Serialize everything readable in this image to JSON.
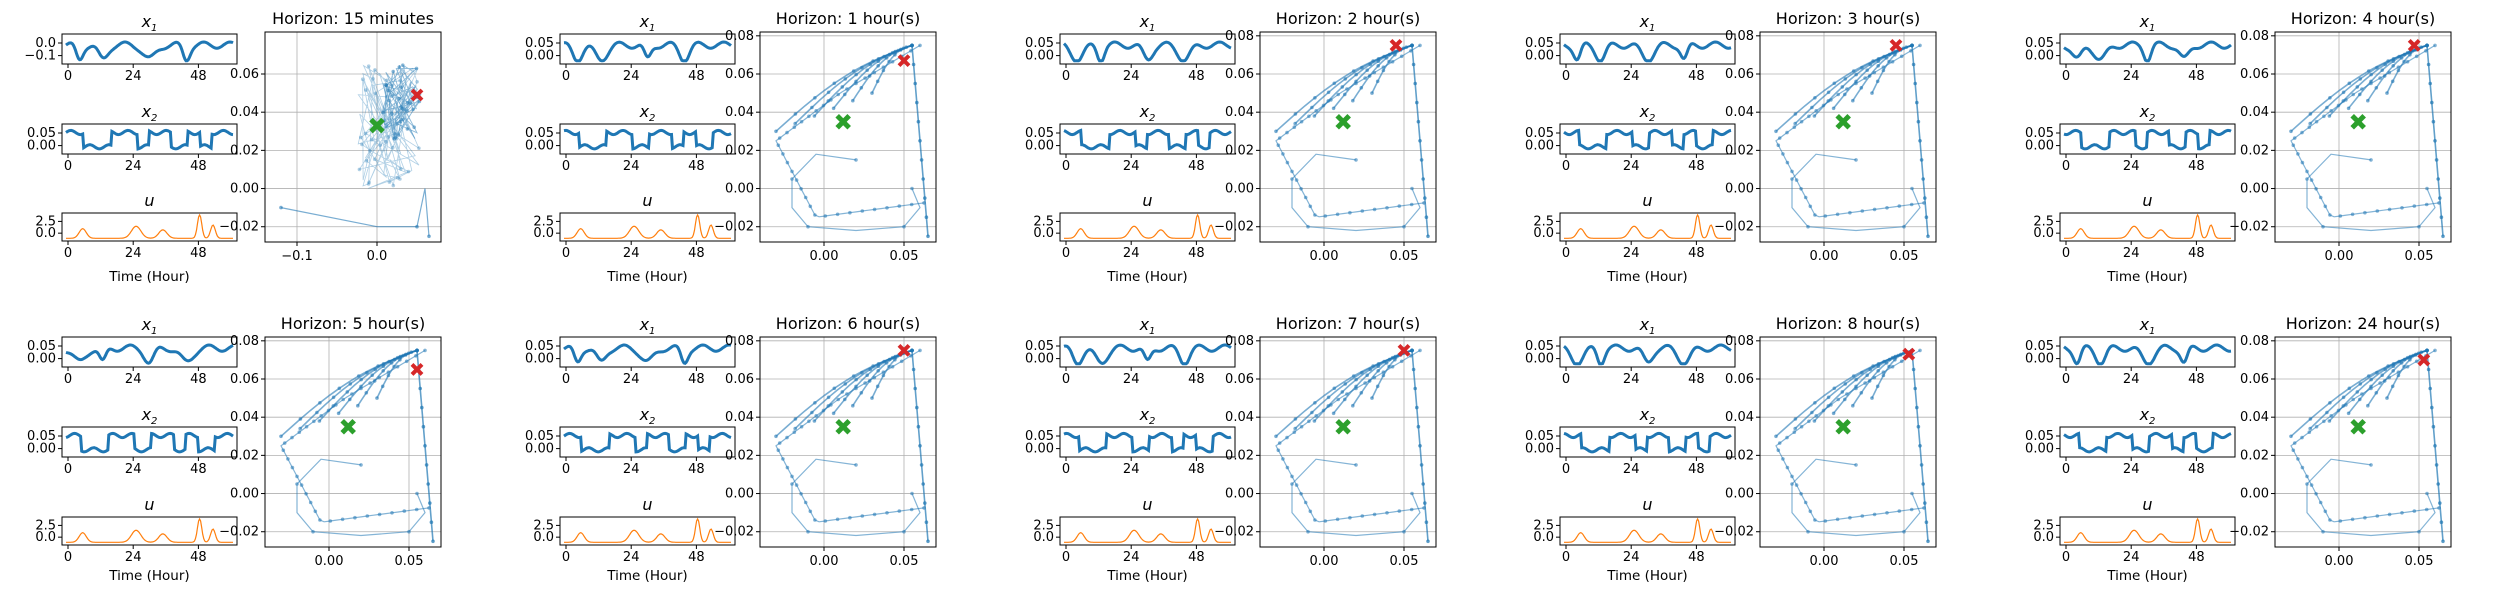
{
  "chart_data": {
    "type": "line",
    "colors": {
      "state": "#1f77b4",
      "input": "#ff7f0e",
      "start": "#2ca02c",
      "end": "#d62728",
      "grid": "#b0b0b0"
    },
    "time_series_panel": {
      "x_ticks": [
        "0",
        "24",
        "48"
      ],
      "xlabel": "Time (Hour)",
      "row_titles": [
        "x1",
        "x2",
        "u"
      ],
      "x1_ticks_first": [
        "0.0",
        "−0.1"
      ],
      "x1_ticks": [
        "0.05",
        "0.00"
      ],
      "x2_ticks": [
        "0.05",
        "0.00"
      ],
      "u_ticks": [
        "2.5",
        "0.0"
      ],
      "x_range": [
        0,
        60
      ]
    },
    "phase_portraits": [
      {
        "title": "Horizon: 15 minutes",
        "x_ticks": [
          "−0.1",
          "0.0",
          "0.1"
        ],
        "y_ticks": [
          "0.06",
          "0.04",
          "0.02",
          "0.00",
          "−0.02"
        ],
        "start": [
          0.0,
          0.033
        ],
        "end": [
          0.05,
          0.049
        ]
      },
      {
        "title": "Horizon: 1 hour(s)",
        "x_ticks": [
          "0.00",
          "0.05"
        ],
        "y_ticks": [
          "0.08",
          "0.06",
          "0.04",
          "0.02",
          "0.00",
          "−0.02"
        ],
        "start": [
          0.012,
          0.035
        ],
        "end": [
          0.05,
          0.067
        ]
      },
      {
        "title": "Horizon: 2 hour(s)",
        "x_ticks": [
          "0.00",
          "0.05"
        ],
        "y_ticks": [
          "0.08",
          "0.06",
          "0.04",
          "0.02",
          "0.00",
          "−0.02"
        ],
        "start": [
          0.012,
          0.035
        ],
        "end": [
          0.045,
          0.075
        ]
      },
      {
        "title": "Horizon: 3 hour(s)",
        "x_ticks": [
          "0.00",
          "0.05"
        ],
        "y_ticks": [
          "0.08",
          "0.06",
          "0.04",
          "0.02",
          "0.00",
          "−0.02"
        ],
        "start": [
          0.012,
          0.035
        ],
        "end": [
          0.045,
          0.075
        ]
      },
      {
        "title": "Horizon: 4 hour(s)",
        "x_ticks": [
          "0.00",
          "0.05"
        ],
        "y_ticks": [
          "0.08",
          "0.06",
          "0.04",
          "0.02",
          "0.00",
          "−0.02"
        ],
        "start": [
          0.012,
          0.035
        ],
        "end": [
          0.047,
          0.075
        ]
      },
      {
        "title": "Horizon: 5 hour(s)",
        "x_ticks": [
          "0.00",
          "0.05"
        ],
        "y_ticks": [
          "0.08",
          "0.06",
          "0.04",
          "0.02",
          "0.00",
          "−0.02"
        ],
        "start": [
          0.012,
          0.035
        ],
        "end": [
          0.055,
          0.065
        ]
      },
      {
        "title": "Horizon: 6 hour(s)",
        "x_ticks": [
          "0.00",
          "0.05"
        ],
        "y_ticks": [
          "0.08",
          "0.06",
          "0.04",
          "0.02",
          "0.00",
          "−0.02"
        ],
        "start": [
          0.012,
          0.035
        ],
        "end": [
          0.05,
          0.075
        ]
      },
      {
        "title": "Horizon: 7 hour(s)",
        "x_ticks": [
          "0.00",
          "0.05"
        ],
        "y_ticks": [
          "0.08",
          "0.06",
          "0.04",
          "0.02",
          "0.00",
          "−0.02"
        ],
        "start": [
          0.012,
          0.035
        ],
        "end": [
          0.05,
          0.075
        ]
      },
      {
        "title": "Horizon: 8 hour(s)",
        "x_ticks": [
          "0.00",
          "0.05"
        ],
        "y_ticks": [
          "0.08",
          "0.06",
          "0.04",
          "0.02",
          "0.00",
          "−0.02"
        ],
        "start": [
          0.012,
          0.035
        ],
        "end": [
          0.053,
          0.073
        ]
      },
      {
        "title": "Horizon: 24 hour(s)",
        "x_ticks": [
          "0.00",
          "0.05"
        ],
        "y_ticks": [
          "0.08",
          "0.06",
          "0.04",
          "0.02",
          "0.00",
          "−0.02"
        ],
        "start": [
          0.012,
          0.035
        ],
        "end": [
          0.053,
          0.07
        ]
      }
    ]
  }
}
